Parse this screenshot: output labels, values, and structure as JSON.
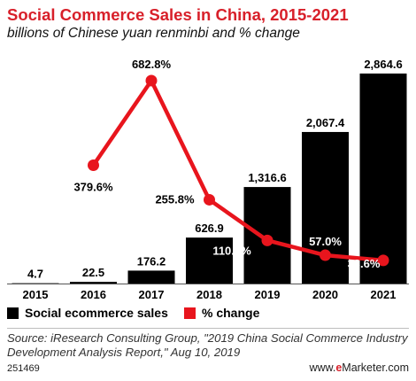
{
  "header": {
    "title": "Social Commerce Sales in China, 2015-2021",
    "subtitle": "billions of Chinese yuan renminbi and % change"
  },
  "legend": {
    "bars_label": "Social ecommerce sales",
    "line_label": "% change"
  },
  "footer": {
    "source": "Source: iResearch Consulting Group, \"2019 China Social Commerce Industry Development Analysis Report,\" Aug 10, 2019",
    "id": "251469",
    "brand_prefix": "www.",
    "brand_e": "e",
    "brand_rest": "Marketer.com"
  },
  "colors": {
    "bar": "#000000",
    "line": "#e8151d",
    "title": "#d8202a"
  },
  "chart_data": {
    "type": "bar",
    "categories": [
      "2015",
      "2016",
      "2017",
      "2018",
      "2019",
      "2020",
      "2021"
    ],
    "series": [
      {
        "name": "Social ecommerce sales",
        "type": "bar",
        "values": [
          4.7,
          22.5,
          176.2,
          626.9,
          1316.6,
          2067.4,
          2864.6
        ],
        "labels": [
          "4.7",
          "22.5",
          "176.2",
          "626.9",
          "1,316.6",
          "2,067.4",
          "2,864.6"
        ]
      },
      {
        "name": "% change",
        "type": "line",
        "values": [
          null,
          379.6,
          682.8,
          255.8,
          110.0,
          57.0,
          38.6
        ],
        "labels": [
          null,
          "379.6%",
          "682.8%",
          "255.8%",
          "110.0%",
          "57.0%",
          "38.6%"
        ]
      }
    ],
    "ylim": [
      0,
      2864.6
    ],
    "y2lim": [
      0,
      682.8
    ]
  }
}
